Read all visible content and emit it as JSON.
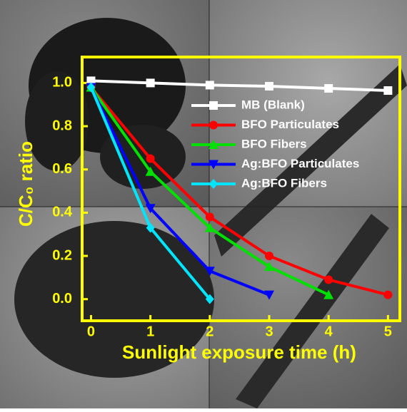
{
  "chart_data": {
    "type": "line",
    "x_label": "Sunlight exposure time (h)",
    "y_label": "C/C₀ ratio",
    "xlim": [
      -0.15,
      5.2
    ],
    "xticks": [
      0,
      1,
      2,
      3,
      4,
      5
    ],
    "ylim": [
      -0.1,
      1.12
    ],
    "yticks": [
      {
        "value": 0,
        "label": "0.0"
      },
      0.2,
      0.4,
      0.6,
      0.8,
      {
        "value": 1,
        "label": "1.0"
      }
    ],
    "axis_color": "#ffff00",
    "series": [
      {
        "name": "MB (Blank)",
        "color": "#ffffff",
        "marker": "square",
        "x": [
          0,
          1,
          2,
          3,
          4,
          5
        ],
        "values": [
          1.01,
          1.0,
          0.99,
          0.985,
          0.975,
          0.965
        ]
      },
      {
        "name": "BFO Particulates",
        "color": "#ff0000",
        "marker": "circle",
        "x": [
          0,
          1,
          2,
          3,
          4,
          5
        ],
        "values": [
          0.98,
          0.65,
          0.38,
          0.2,
          0.09,
          0.02
        ]
      },
      {
        "name": "BFO Fibers",
        "color": "#00e000",
        "marker": "triangle-up",
        "x": [
          0,
          1,
          2,
          3,
          4
        ],
        "values": [
          0.98,
          0.59,
          0.33,
          0.15,
          0.02
        ]
      },
      {
        "name": "Ag:BFO Particulates",
        "color": "#0000ff",
        "marker": "triangle-down",
        "x": [
          0,
          1,
          2,
          3
        ],
        "values": [
          0.98,
          0.42,
          0.13,
          0.02
        ]
      },
      {
        "name": "Ag:BFO Fibers",
        "color": "#00e5ff",
        "marker": "diamond",
        "x": [
          0,
          1,
          2
        ],
        "values": [
          0.98,
          0.33,
          0.0
        ]
      }
    ]
  }
}
